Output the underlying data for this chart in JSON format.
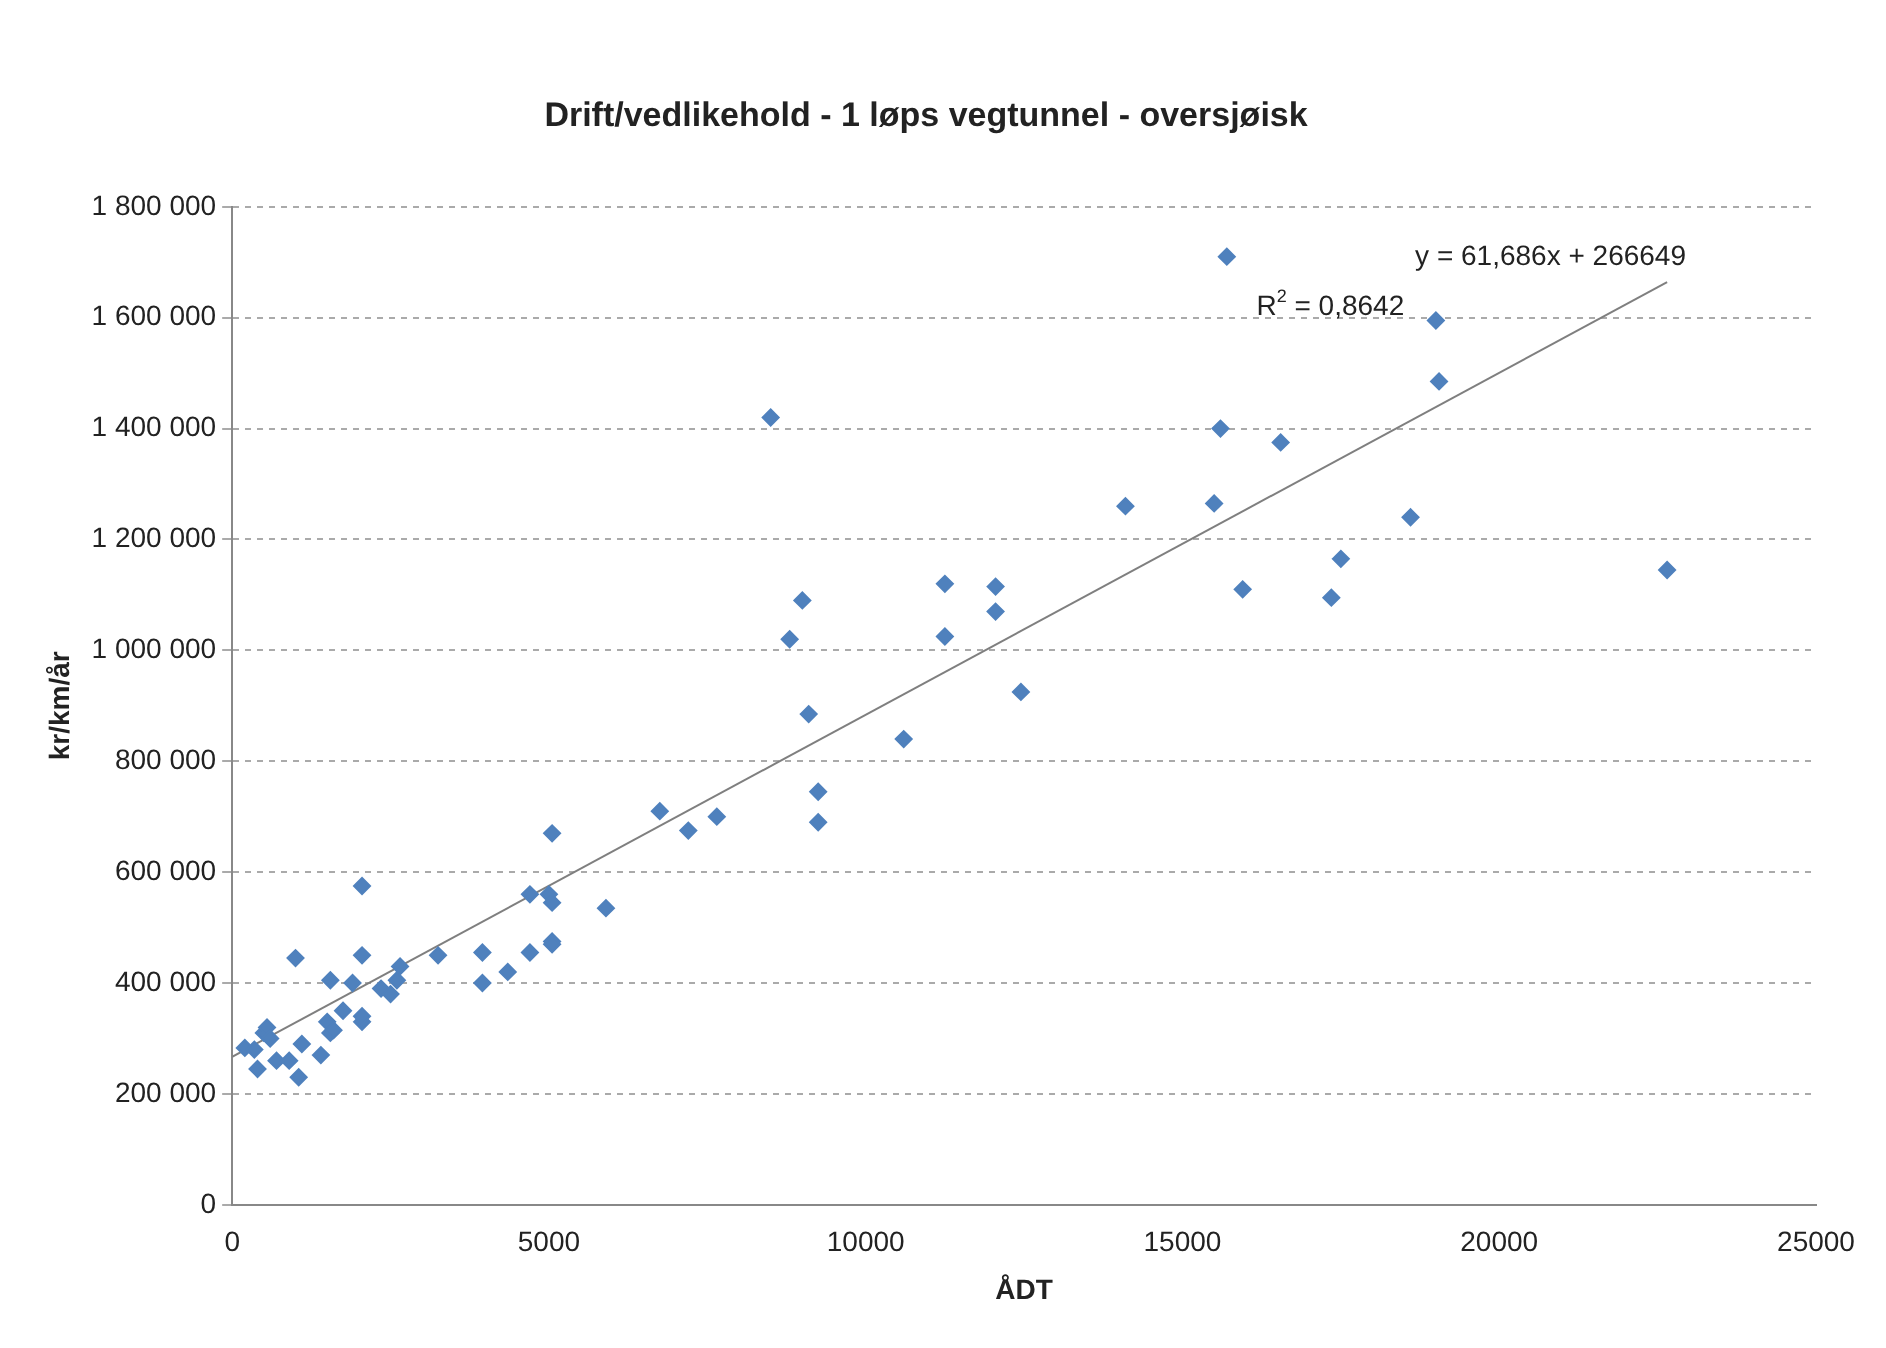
{
  "chart_data": {
    "type": "scatter",
    "title": "Drift/vedlikehold - 1 løps vegtunnel - oversjøisk",
    "xlabel": "ÅDT",
    "ylabel": "kr/km/år",
    "xlim": [
      0,
      25000
    ],
    "xticks": [
      0,
      5000,
      10000,
      15000,
      20000,
      25000
    ],
    "ylim": [
      0,
      1800000
    ],
    "yticks": [
      {
        "value": 0,
        "label": "0"
      },
      {
        "value": 200000,
        "label": "200 000"
      },
      {
        "value": 400000,
        "label": "400 000"
      },
      {
        "value": 600000,
        "label": "600 000"
      },
      {
        "value": 800000,
        "label": "800 000"
      },
      {
        "value": 1000000,
        "label": "1 000 000"
      },
      {
        "value": 1200000,
        "label": "1 200 000"
      },
      {
        "value": 1400000,
        "label": "1 400 000"
      },
      {
        "value": 1600000,
        "label": "1 600 000"
      },
      {
        "value": 1800000,
        "label": "1 800 000"
      }
    ],
    "grid": "y",
    "legend": false,
    "annotations": [
      "y = 61,686x + 266649",
      "R$^{2}$ = 0,8642"
    ],
    "series": [
      {
        "type": "scatter",
        "marker": "diamond",
        "color": "#4f81bd",
        "x": [
          200,
          350,
          400,
          500,
          550,
          600,
          700,
          900,
          1000,
          1050,
          1100,
          1400,
          1500,
          1550,
          1550,
          1600,
          1750,
          1900,
          2050,
          2050,
          2050,
          2050,
          2350,
          2500,
          2600,
          2650,
          3250,
          3950,
          3950,
          4350,
          4700,
          4700,
          5000,
          5050,
          5050,
          5050,
          5050,
          5900,
          6750,
          7200,
          7650,
          8500,
          8800,
          9000,
          9100,
          9250,
          9250,
          10600,
          11250,
          11250,
          12050,
          12050,
          12450,
          14100,
          15500,
          15600,
          15700,
          15950,
          16550,
          17350,
          17500,
          18600,
          19000,
          19050,
          22650
        ],
        "values": [
          283000,
          280000,
          245000,
          310000,
          320000,
          300000,
          260000,
          260000,
          445000,
          230000,
          290000,
          270000,
          330000,
          310000,
          405000,
          315000,
          350000,
          400000,
          575000,
          450000,
          330000,
          340000,
          390000,
          380000,
          405000,
          430000,
          450000,
          400000,
          455000,
          420000,
          455000,
          560000,
          560000,
          670000,
          545000,
          475000,
          470000,
          535000,
          710000,
          675000,
          700000,
          1420000,
          1020000,
          1090000,
          885000,
          745000,
          690000,
          840000,
          1120000,
          1025000,
          1115000,
          1070000,
          925000,
          1260000,
          1265000,
          1400000,
          1710000,
          1110000,
          1375000,
          1095000,
          1165000,
          1240000,
          1595000,
          1485000,
          1145000
        ]
      },
      {
        "type": "line",
        "marker": "none",
        "color": "#7f7f7f",
        "x": [
          0,
          22650
        ],
        "values": [
          267000,
          1664000
        ]
      }
    ]
  }
}
